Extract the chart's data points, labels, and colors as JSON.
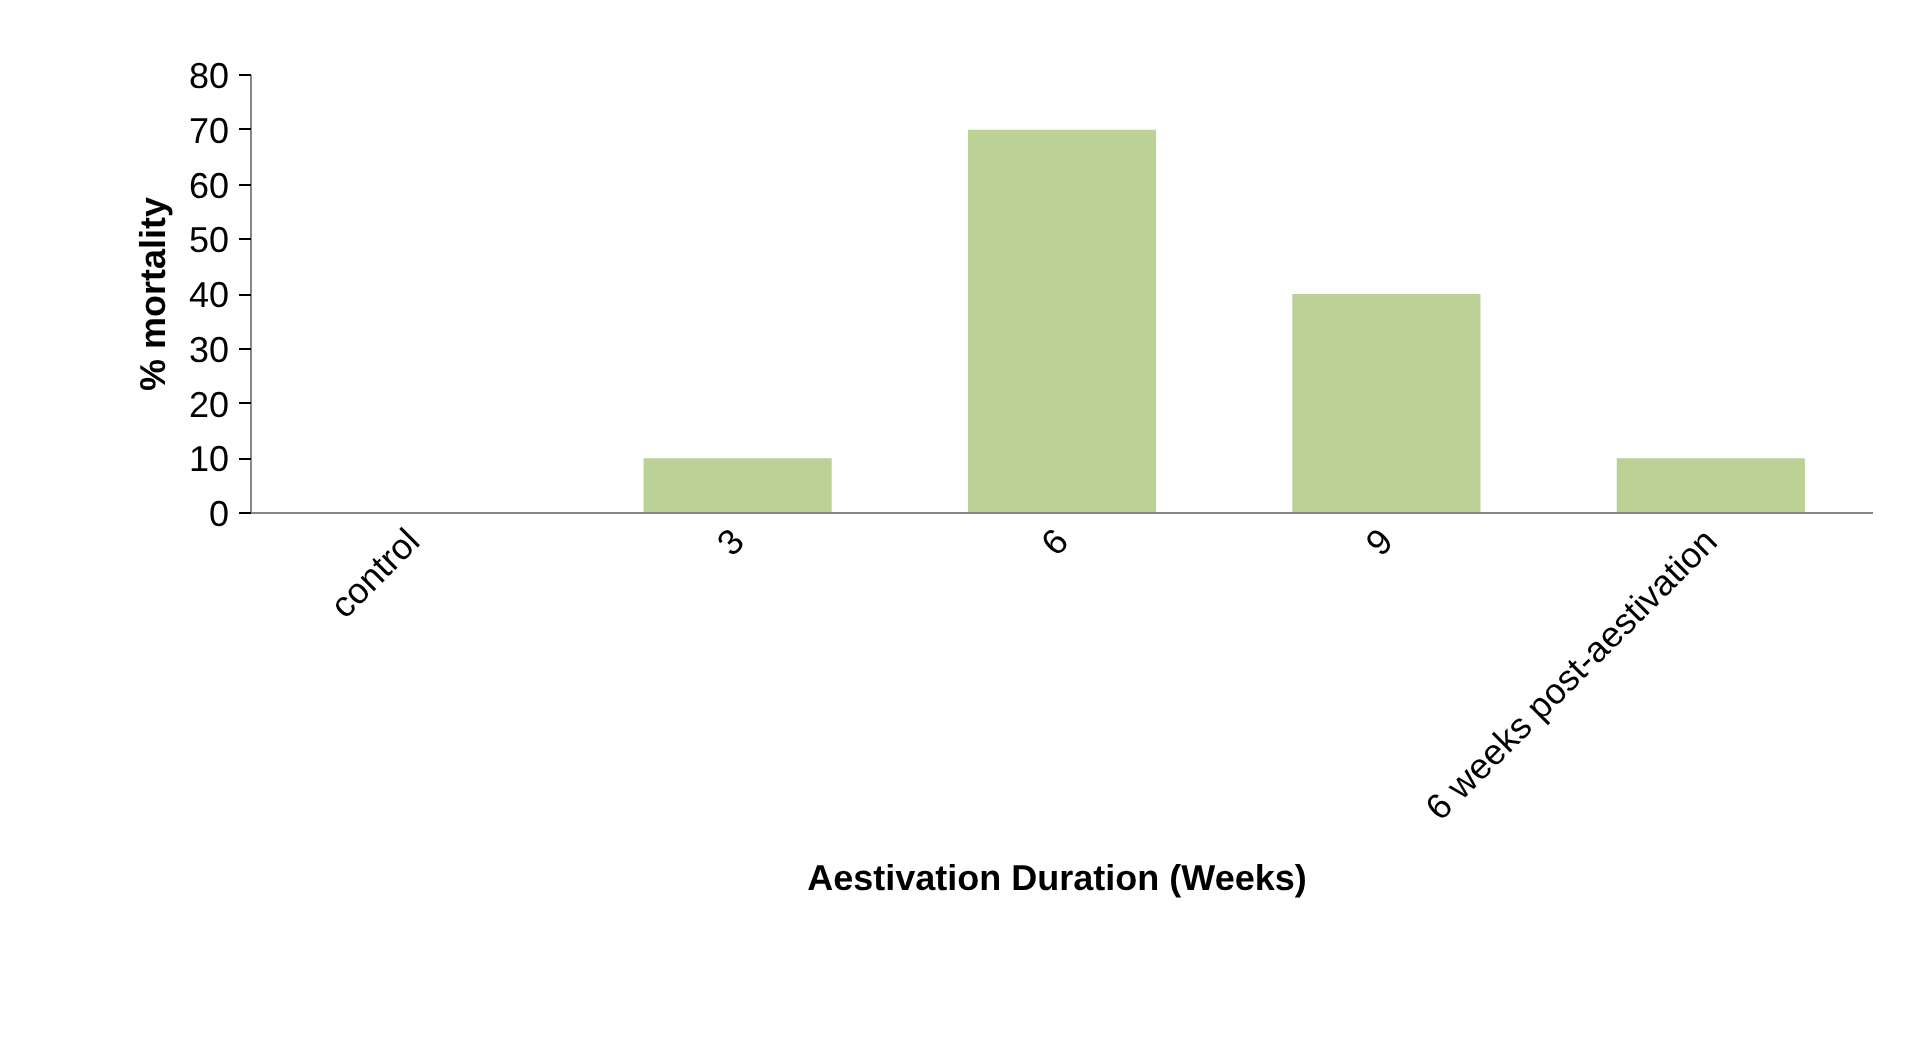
{
  "chart_data": {
    "type": "bar",
    "xlabel": "Aestivation Duration  (Weeks)",
    "ylabel": "% mortality",
    "categories": [
      "control",
      "3",
      "6",
      "9",
      "6 weeks post-aestivation"
    ],
    "values": [
      0,
      10,
      70,
      40,
      10
    ],
    "color": "#bcd196",
    "ylim": [
      0,
      80
    ],
    "yticks": [
      0,
      10,
      20,
      30,
      40,
      50,
      60,
      70,
      80
    ],
    "grid": false
  }
}
